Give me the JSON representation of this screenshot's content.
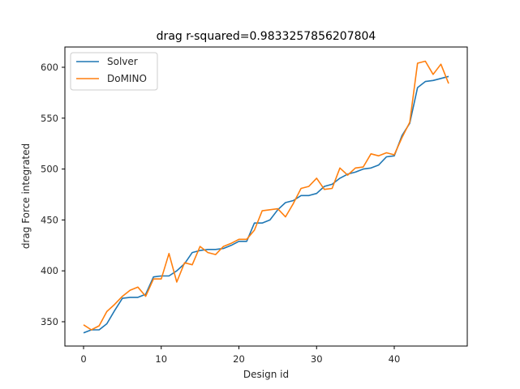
{
  "chart_data": {
    "type": "line",
    "title": "drag r-squared=0.9833257856207804",
    "xlabel": "Design id",
    "ylabel": "drag Force integrated",
    "xlim": [
      -2.35,
      49.35
    ],
    "ylim": [
      327,
      620
    ],
    "x_ticks": [
      0,
      10,
      20,
      30,
      40
    ],
    "y_ticks": [
      350,
      400,
      450,
      500,
      550,
      600
    ],
    "grid": false,
    "legend_position": "upper left",
    "x": [
      0,
      1,
      2,
      3,
      4,
      5,
      6,
      7,
      8,
      9,
      10,
      11,
      12,
      13,
      14,
      15,
      16,
      17,
      18,
      19,
      20,
      21,
      22,
      23,
      24,
      25,
      26,
      27,
      28,
      29,
      30,
      31,
      32,
      33,
      34,
      35,
      36,
      37,
      38,
      39,
      40,
      41,
      42,
      43,
      44,
      45,
      46,
      47
    ],
    "series": [
      {
        "name": "Solver",
        "color": "#1f77b4",
        "values": [
          339,
          342,
          342,
          348,
          361,
          373,
          374,
          374,
          377,
          394,
          395,
          395,
          400,
          407,
          418,
          420,
          421,
          421,
          422,
          425,
          429,
          429,
          447,
          447,
          450,
          460,
          467,
          469,
          474,
          474,
          476,
          483,
          485,
          491,
          495,
          497,
          500,
          501,
          504,
          512,
          513,
          533,
          545,
          580,
          586,
          587,
          589,
          591
        ]
      },
      {
        "name": "DoMINO",
        "color": "#ff7f0e",
        "values": [
          347,
          342,
          346,
          360,
          367,
          375,
          381,
          384,
          375,
          392,
          392,
          417,
          389,
          408,
          406,
          424,
          418,
          416,
          424,
          427,
          431,
          431,
          440,
          459,
          460,
          461,
          453,
          466,
          481,
          483,
          491,
          480,
          481,
          501,
          494,
          501,
          502,
          515,
          513,
          516,
          514,
          531,
          546,
          604,
          606,
          593,
          603,
          584
        ]
      }
    ]
  }
}
